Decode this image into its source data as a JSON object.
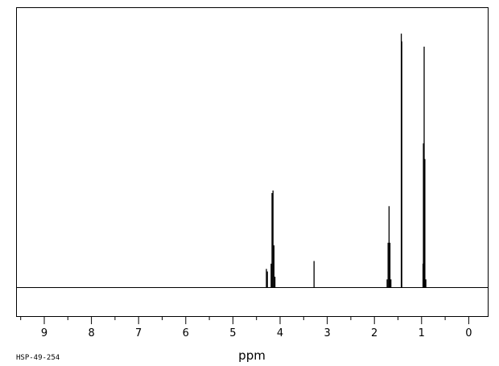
{
  "chart_data": {
    "type": "line",
    "title": "",
    "xlabel": "ppm",
    "ylabel": "",
    "x_reversed": true,
    "xlim": [
      9.5,
      -0.5
    ],
    "ylim": [
      -0.1,
      1.0
    ],
    "x_ticks": [
      "9",
      "8",
      "7",
      "6",
      "5",
      "4",
      "3",
      "2",
      "1",
      "0"
    ],
    "x_tick_values": [
      9,
      8,
      7,
      6,
      5,
      4,
      3,
      2,
      1,
      0
    ],
    "grid": false,
    "legend": "none",
    "series": [
      {
        "peaks": [
          {
            "shift": 4.29,
            "height": 0.07
          },
          {
            "shift": 4.27,
            "height": 0.06
          },
          {
            "shift": 4.19,
            "height": 0.09
          },
          {
            "shift": 4.17,
            "height": 0.36
          },
          {
            "shift": 4.15,
            "height": 0.37
          },
          {
            "shift": 4.13,
            "height": 0.16
          },
          {
            "shift": 4.11,
            "height": 0.04
          },
          {
            "shift": 3.28,
            "height": 0.1
          },
          {
            "shift": 1.73,
            "height": 0.03
          },
          {
            "shift": 1.71,
            "height": 0.17
          },
          {
            "shift": 1.69,
            "height": 0.31
          },
          {
            "shift": 1.67,
            "height": 0.17
          },
          {
            "shift": 1.65,
            "height": 0.03
          },
          {
            "shift": 1.43,
            "height": 0.97
          },
          {
            "shift": 1.42,
            "height": 0.94
          },
          {
            "shift": 0.97,
            "height": 0.09
          },
          {
            "shift": 0.96,
            "height": 0.55
          },
          {
            "shift": 0.945,
            "height": 0.92
          },
          {
            "shift": 0.93,
            "height": 0.49
          },
          {
            "shift": 0.91,
            "height": 0.03
          }
        ]
      }
    ]
  },
  "footer": {
    "code": "HSP-49-254"
  },
  "colors": {
    "line": "#000000",
    "background": "#ffffff"
  }
}
